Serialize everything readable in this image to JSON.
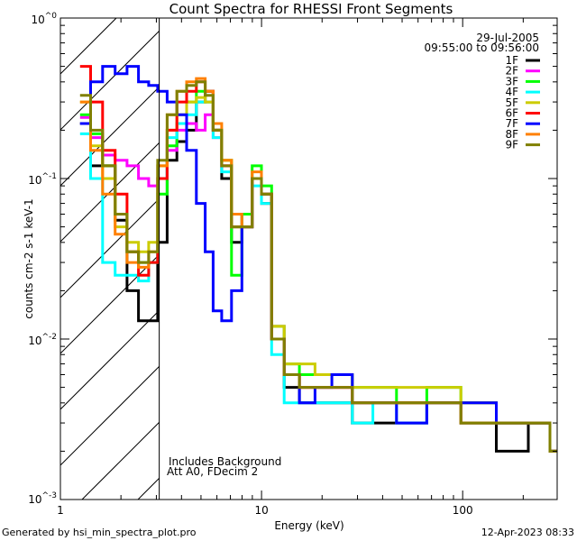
{
  "chart_data": {
    "type": "line",
    "title": "Count Spectra for RHESSI Front Segments",
    "xlabel": "Energy (keV)",
    "ylabel": "counts cm-2 s-1 keV-1",
    "xscale": "log",
    "yscale": "log",
    "xlim": [
      1,
      295
    ],
    "ylim": [
      0.001,
      1
    ],
    "xticklabels": [
      "1",
      "10",
      "100"
    ],
    "yticklabels": [
      "10^0",
      "10^-1",
      "10^-2",
      "10^-3"
    ],
    "hatched_region_keV": [
      1,
      3.1
    ],
    "date": "29-Jul-2005",
    "time_range": "09:55:00 to 09:56:00",
    "annotations": [
      "Includes Background",
      "Att A0, FDecim 2"
    ],
    "footer_left": "Generated by hsi_min_spectra_plot.pro",
    "footer_right": "12-Apr-2023 08:33",
    "legend_position": "top-right",
    "x": [
      1.33,
      1.5,
      1.75,
      2,
      2.3,
      2.6,
      2.9,
      3.2,
      3.6,
      4,
      4.5,
      5,
      5.5,
      6,
      6.7,
      7.5,
      8.5,
      9.5,
      10.5,
      12,
      14,
      17,
      20,
      25,
      32,
      40,
      55,
      80,
      120,
      180,
      250,
      295
    ],
    "series": [
      {
        "name": "1F",
        "color": "#000000",
        "values": [
          0.22,
          0.12,
          0.12,
          0.055,
          0.02,
          0.013,
          0.013,
          0.04,
          0.13,
          0.17,
          0.2,
          0.3,
          0.35,
          0.2,
          0.1,
          0.04,
          0.05,
          0.1,
          0.07,
          0.01,
          0.005,
          0.004,
          0.004,
          0.004,
          0.003,
          0.003,
          0.003,
          0.004,
          0.003,
          0.002,
          0.003,
          0.002
        ]
      },
      {
        "name": "2F",
        "color": "#ff00ff",
        "values": [
          0.24,
          0.18,
          0.14,
          0.13,
          0.12,
          0.1,
          0.09,
          0.1,
          0.15,
          0.2,
          0.22,
          0.2,
          0.25,
          0.18,
          0.12,
          0.06,
          0.05,
          0.1,
          0.08,
          0.012,
          0.006,
          0.005,
          0.005,
          0.005,
          0.004,
          0.004,
          0.004,
          0.004,
          0.004,
          0.003,
          0.003,
          0.002
        ]
      },
      {
        "name": "3F",
        "color": "#00ff00",
        "values": [
          0.25,
          0.19,
          0.12,
          0.06,
          0.035,
          0.03,
          0.03,
          0.08,
          0.16,
          0.22,
          0.3,
          0.35,
          0.3,
          0.2,
          0.13,
          0.025,
          0.06,
          0.12,
          0.09,
          0.012,
          0.007,
          0.006,
          0.006,
          0.006,
          0.005,
          0.005,
          0.004,
          0.005,
          0.004,
          0.003,
          0.003,
          0.002
        ]
      },
      {
        "name": "4F",
        "color": "#00ffff",
        "values": [
          0.19,
          0.1,
          0.03,
          0.025,
          0.025,
          0.023,
          0.03,
          0.1,
          0.18,
          0.22,
          0.25,
          0.3,
          0.3,
          0.18,
          0.11,
          0.05,
          0.05,
          0.09,
          0.07,
          0.008,
          0.004,
          0.004,
          0.004,
          0.004,
          0.003,
          0.004,
          0.003,
          0.004,
          0.003,
          0.003,
          0.003,
          0.002
        ]
      },
      {
        "name": "5F",
        "color": "#cccc00",
        "values": [
          0.3,
          0.16,
          0.1,
          0.05,
          0.04,
          0.035,
          0.04,
          0.12,
          0.2,
          0.25,
          0.3,
          0.32,
          0.3,
          0.2,
          0.13,
          0.05,
          0.05,
          0.1,
          0.08,
          0.012,
          0.007,
          0.007,
          0.006,
          0.006,
          0.005,
          0.005,
          0.005,
          0.005,
          0.004,
          0.003,
          0.003,
          0.002
        ]
      },
      {
        "name": "6F",
        "color": "#ff0000",
        "values": [
          0.5,
          0.3,
          0.15,
          0.08,
          0.035,
          0.025,
          0.03,
          0.1,
          0.2,
          0.3,
          0.35,
          0.4,
          0.35,
          0.2,
          0.12,
          0.05,
          0.05,
          0.1,
          0.08,
          0.01,
          0.006,
          0.005,
          0.005,
          0.005,
          0.004,
          0.004,
          0.004,
          0.004,
          0.003,
          0.003,
          0.003,
          0.002
        ]
      },
      {
        "name": "7F",
        "color": "#0000ff",
        "values": [
          0.22,
          0.4,
          0.5,
          0.45,
          0.5,
          0.4,
          0.38,
          0.35,
          0.3,
          0.25,
          0.15,
          0.07,
          0.035,
          0.015,
          0.013,
          0.02,
          0.05,
          0.1,
          0.08,
          0.01,
          0.006,
          0.004,
          0.005,
          0.006,
          0.004,
          0.004,
          0.003,
          0.004,
          0.004,
          0.003,
          0.003,
          0.002
        ]
      },
      {
        "name": "8F",
        "color": "#ff8000",
        "values": [
          0.3,
          0.15,
          0.08,
          0.045,
          0.03,
          0.028,
          0.035,
          0.12,
          0.25,
          0.35,
          0.4,
          0.42,
          0.35,
          0.22,
          0.13,
          0.06,
          0.05,
          0.11,
          0.08,
          0.01,
          0.006,
          0.005,
          0.005,
          0.005,
          0.004,
          0.004,
          0.004,
          0.004,
          0.003,
          0.003,
          0.003,
          0.002
        ]
      },
      {
        "name": "9F",
        "color": "#808000",
        "values": [
          0.33,
          0.2,
          0.12,
          0.06,
          0.035,
          0.03,
          0.035,
          0.13,
          0.25,
          0.35,
          0.38,
          0.4,
          0.33,
          0.2,
          0.12,
          0.05,
          0.05,
          0.1,
          0.08,
          0.01,
          0.006,
          0.005,
          0.005,
          0.005,
          0.004,
          0.004,
          0.004,
          0.004,
          0.003,
          0.003,
          0.003,
          0.002
        ]
      }
    ]
  }
}
